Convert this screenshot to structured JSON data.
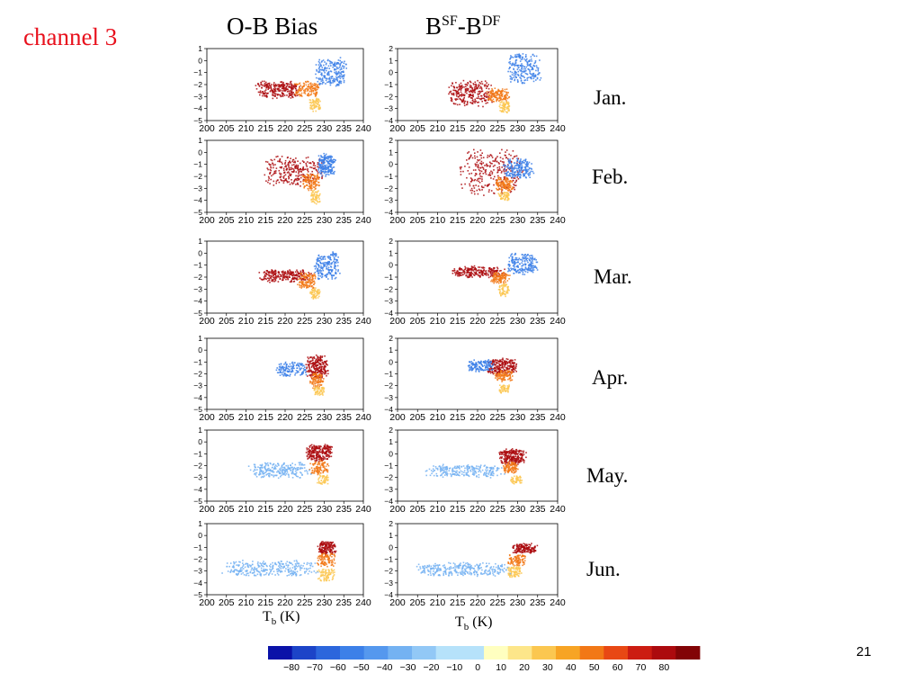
{
  "slide": {
    "channel_label": "channel 3",
    "col1_title": "O-B Bias",
    "col2_title_base1": "B",
    "col2_title_sup1": "SF",
    "col2_title_mid": "-B",
    "col2_title_sup2": "DF",
    "xlabel_main": "T",
    "xlabel_sub": "b",
    "xlabel_unit": " (K)",
    "page_number": "21",
    "months": [
      "Jan.",
      "Feb.",
      "Mar.",
      "Apr.",
      "May.",
      "Jun."
    ]
  },
  "chart_data": {
    "type": "scatter",
    "x_ticks": [
      200,
      205,
      210,
      215,
      220,
      225,
      230,
      235,
      240
    ],
    "xlim": [
      200,
      240
    ],
    "xlabel": "Tb (K)",
    "columns": [
      {
        "title": "O-B Bias",
        "ylim": [
          -5,
          1
        ],
        "y_ticks": [
          1,
          0,
          -1,
          -2,
          -3,
          -4,
          -5
        ]
      },
      {
        "title": "BSF-BDF",
        "ylim": [
          -4,
          2
        ],
        "y_ticks": [
          2,
          1,
          0,
          -1,
          -2,
          -3,
          -4
        ]
      }
    ],
    "panels": [
      {
        "month": "Jan.",
        "column": 0,
        "clusters": [
          {
            "c": 70,
            "x": [
              212,
              224
            ],
            "y": [
              -3.1,
              -1.6
            ],
            "n": 260
          },
          {
            "c": 40,
            "x": [
              222,
              229
            ],
            "y": [
              -3.0,
              -1.6
            ],
            "n": 140
          },
          {
            "c": 20,
            "x": [
              226,
              229
            ],
            "y": [
              -4.2,
              -3.0
            ],
            "n": 70
          },
          {
            "c": -50,
            "x": [
              227,
              236
            ],
            "y": [
              -2.2,
              0.4
            ],
            "n": 220
          }
        ]
      },
      {
        "month": "Jan.",
        "column": 1,
        "clusters": [
          {
            "c": 70,
            "x": [
              212,
              224
            ],
            "y": [
              -2.8,
              -0.5
            ],
            "n": 260
          },
          {
            "c": 40,
            "x": [
              222,
              228
            ],
            "y": [
              -2.4,
              -1.2
            ],
            "n": 140
          },
          {
            "c": 20,
            "x": [
              225,
              228
            ],
            "y": [
              -3.3,
              -2.3
            ],
            "n": 70
          },
          {
            "c": -50,
            "x": [
              227,
              236
            ],
            "y": [
              -1.0,
              1.8
            ],
            "n": 220
          }
        ]
      },
      {
        "month": "Feb.",
        "column": 0,
        "clusters": [
          {
            "c": 70,
            "x": [
              214,
              230
            ],
            "y": [
              -2.8,
              -0.2
            ],
            "n": 280
          },
          {
            "c": 40,
            "x": [
              224,
              229
            ],
            "y": [
              -3.2,
              -1.6
            ],
            "n": 120
          },
          {
            "c": 20,
            "x": [
              226,
              229
            ],
            "y": [
              -4.3,
              -3.0
            ],
            "n": 60
          },
          {
            "c": -50,
            "x": [
              228,
              233
            ],
            "y": [
              -2.0,
              0.0
            ],
            "n": 200
          }
        ]
      },
      {
        "month": "Feb.",
        "column": 1,
        "clusters": [
          {
            "c": 70,
            "x": [
              215,
              232
            ],
            "y": [
              -2.6,
              1.4
            ],
            "n": 280
          },
          {
            "c": 40,
            "x": [
              224,
              229
            ],
            "y": [
              -2.2,
              -1.0
            ],
            "n": 120
          },
          {
            "c": 20,
            "x": [
              225,
              228
            ],
            "y": [
              -3.0,
              -2.2
            ],
            "n": 60
          },
          {
            "c": -50,
            "x": [
              226,
              234
            ],
            "y": [
              -1.2,
              0.6
            ],
            "n": 200
          }
        ]
      },
      {
        "month": "Mar.",
        "column": 0,
        "clusters": [
          {
            "c": 70,
            "x": [
              213,
              227
            ],
            "y": [
              -2.4,
              -1.3
            ],
            "n": 240
          },
          {
            "c": 40,
            "x": [
              223,
              228
            ],
            "y": [
              -3.0,
              -1.5
            ],
            "n": 120
          },
          {
            "c": 20,
            "x": [
              226,
              229
            ],
            "y": [
              -3.8,
              -2.8
            ],
            "n": 60
          },
          {
            "c": -50,
            "x": [
              227,
              234
            ],
            "y": [
              -2.2,
              0.2
            ],
            "n": 200
          }
        ]
      },
      {
        "month": "Mar.",
        "column": 1,
        "clusters": [
          {
            "c": 70,
            "x": [
              213,
              227
            ],
            "y": [
              -1.0,
              0.0
            ],
            "n": 240
          },
          {
            "c": 40,
            "x": [
              223,
              228
            ],
            "y": [
              -1.5,
              -0.5
            ],
            "n": 120
          },
          {
            "c": 20,
            "x": [
              225,
              228
            ],
            "y": [
              -2.6,
              -1.5
            ],
            "n": 60
          },
          {
            "c": -50,
            "x": [
              227,
              235
            ],
            "y": [
              -0.8,
              1.1
            ],
            "n": 200
          }
        ]
      },
      {
        "month": "Apr.",
        "column": 0,
        "clusters": [
          {
            "c": 70,
            "x": [
              225,
              231
            ],
            "y": [
              -2.4,
              -0.2
            ],
            "n": 240
          },
          {
            "c": 40,
            "x": [
              226,
              230
            ],
            "y": [
              -3.2,
              -1.8
            ],
            "n": 100
          },
          {
            "c": 20,
            "x": [
              227,
              230
            ],
            "y": [
              -3.8,
              -3.0
            ],
            "n": 50
          },
          {
            "c": -50,
            "x": [
              217,
              226
            ],
            "y": [
              -2.2,
              -0.9
            ],
            "n": 140
          }
        ]
      },
      {
        "month": "Apr.",
        "column": 1,
        "clusters": [
          {
            "c": 70,
            "x": [
              222,
              230
            ],
            "y": [
              -1.1,
              0.4
            ],
            "n": 240
          },
          {
            "c": 40,
            "x": [
              224,
              229
            ],
            "y": [
              -1.6,
              -0.6
            ],
            "n": 100
          },
          {
            "c": 20,
            "x": [
              225,
              228
            ],
            "y": [
              -2.6,
              -1.8
            ],
            "n": 50
          },
          {
            "c": -50,
            "x": [
              217,
              224
            ],
            "y": [
              -0.8,
              0.3
            ],
            "n": 140
          }
        ]
      },
      {
        "month": "May.",
        "column": 0,
        "clusters": [
          {
            "c": 70,
            "x": [
              225,
              232
            ],
            "y": [
              -1.6,
              -0.1
            ],
            "n": 240
          },
          {
            "c": 40,
            "x": [
              226,
              231
            ],
            "y": [
              -2.8,
              -1.4
            ],
            "n": 100
          },
          {
            "c": 20,
            "x": [
              228,
              231
            ],
            "y": [
              -3.6,
              -2.6
            ],
            "n": 50
          },
          {
            "c": -30,
            "x": [
              210,
              227
            ],
            "y": [
              -3.0,
              -1.6
            ],
            "n": 240
          }
        ]
      },
      {
        "month": "May.",
        "column": 1,
        "clusters": [
          {
            "c": 70,
            "x": [
              225,
              232
            ],
            "y": [
              -0.9,
              0.5
            ],
            "n": 240
          },
          {
            "c": 40,
            "x": [
              226,
              230
            ],
            "y": [
              -1.6,
              -0.6
            ],
            "n": 100
          },
          {
            "c": 20,
            "x": [
              228,
              231
            ],
            "y": [
              -2.5,
              -1.8
            ],
            "n": 50
          },
          {
            "c": -30,
            "x": [
              206,
              227
            ],
            "y": [
              -2.0,
              -0.8
            ],
            "n": 240
          }
        ]
      },
      {
        "month": "Jun.",
        "column": 0,
        "clusters": [
          {
            "c": 70,
            "x": [
              228,
              233
            ],
            "y": [
              -1.6,
              -0.4
            ],
            "n": 160
          },
          {
            "c": 40,
            "x": [
              228,
              233
            ],
            "y": [
              -2.6,
              -1.4
            ],
            "n": 100
          },
          {
            "c": 20,
            "x": [
              228,
              233
            ],
            "y": [
              -3.9,
              -2.6
            ],
            "n": 80
          },
          {
            "c": -30,
            "x": [
              203,
              229
            ],
            "y": [
              -3.4,
              -2.0
            ],
            "n": 300
          }
        ]
      },
      {
        "month": "Jun.",
        "column": 1,
        "clusters": [
          {
            "c": 70,
            "x": [
              228,
              235
            ],
            "y": [
              -0.5,
              0.4
            ],
            "n": 160
          },
          {
            "c": 40,
            "x": [
              227,
              232
            ],
            "y": [
              -1.5,
              -0.5
            ],
            "n": 100
          },
          {
            "c": 20,
            "x": [
              227,
              231
            ],
            "y": [
              -2.5,
              -1.5
            ],
            "n": 80
          },
          {
            "c": -30,
            "x": [
              203,
              229
            ],
            "y": [
              -2.4,
              -1.2
            ],
            "n": 300
          }
        ]
      }
    ],
    "colorbar": {
      "ticks": [
        -80,
        -70,
        -60,
        -50,
        -40,
        -30,
        -20,
        -10,
        0,
        10,
        20,
        30,
        40,
        50,
        60,
        70,
        80
      ],
      "tick_labels": [
        "−80",
        "−70",
        "−60",
        "−50",
        "−40",
        "−30",
        "−20",
        "−10",
        "0",
        "10",
        "20",
        "30",
        "40",
        "50",
        "60",
        "70",
        "80"
      ],
      "colors": [
        "#0a12a8",
        "#1c44c8",
        "#2c66dc",
        "#3c80e8",
        "#5598ee",
        "#74b2f2",
        "#92c8f6",
        "#b6e2fa",
        "#ffffc0",
        "#fde68a",
        "#fbc750",
        "#f7a424",
        "#f27816",
        "#e84814",
        "#cc1c12",
        "#ac0a0e",
        "#820406"
      ]
    }
  }
}
